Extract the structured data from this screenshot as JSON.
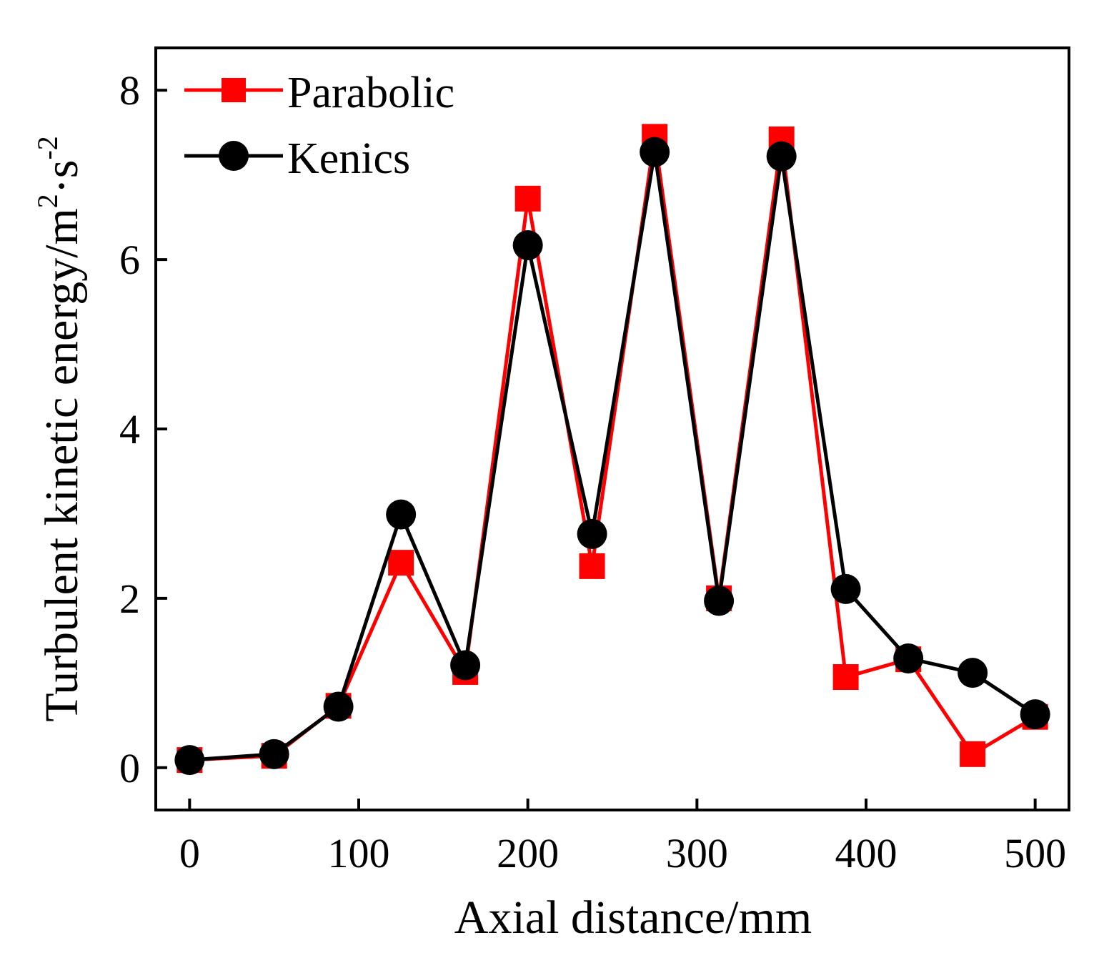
{
  "chart_data": {
    "type": "line",
    "title": "",
    "xlabel": "Axial distance/mm",
    "ylabel": {
      "base": "Turbulent kinetic energy/m",
      "sup1": "2",
      "mid": "·s",
      "sup2": "-2"
    },
    "xlim": [
      -20,
      520
    ],
    "ylim": [
      -0.5,
      8.5
    ],
    "xticks": [
      0,
      100,
      200,
      300,
      400,
      500
    ],
    "yticks": [
      0,
      2,
      4,
      6,
      8
    ],
    "grid": false,
    "legend_position": "top-left",
    "series": [
      {
        "name": "Parabolic",
        "color": "#ff0000",
        "marker": "square",
        "x": [
          0,
          50,
          88,
          125,
          163,
          200,
          238,
          275,
          313,
          350,
          388,
          425,
          463,
          500
        ],
        "y": [
          0.09,
          0.14,
          0.73,
          2.42,
          1.13,
          6.72,
          2.38,
          7.45,
          2.0,
          7.42,
          1.07,
          1.28,
          0.16,
          0.6
        ]
      },
      {
        "name": "Kenics",
        "color": "#000000",
        "marker": "circle",
        "x": [
          0,
          50,
          88,
          125,
          163,
          200,
          238,
          275,
          313,
          350,
          388,
          425,
          463,
          500
        ],
        "y": [
          0.09,
          0.16,
          0.72,
          2.99,
          1.21,
          6.17,
          2.76,
          7.27,
          1.97,
          7.22,
          2.11,
          1.29,
          1.12,
          0.63
        ]
      }
    ]
  }
}
